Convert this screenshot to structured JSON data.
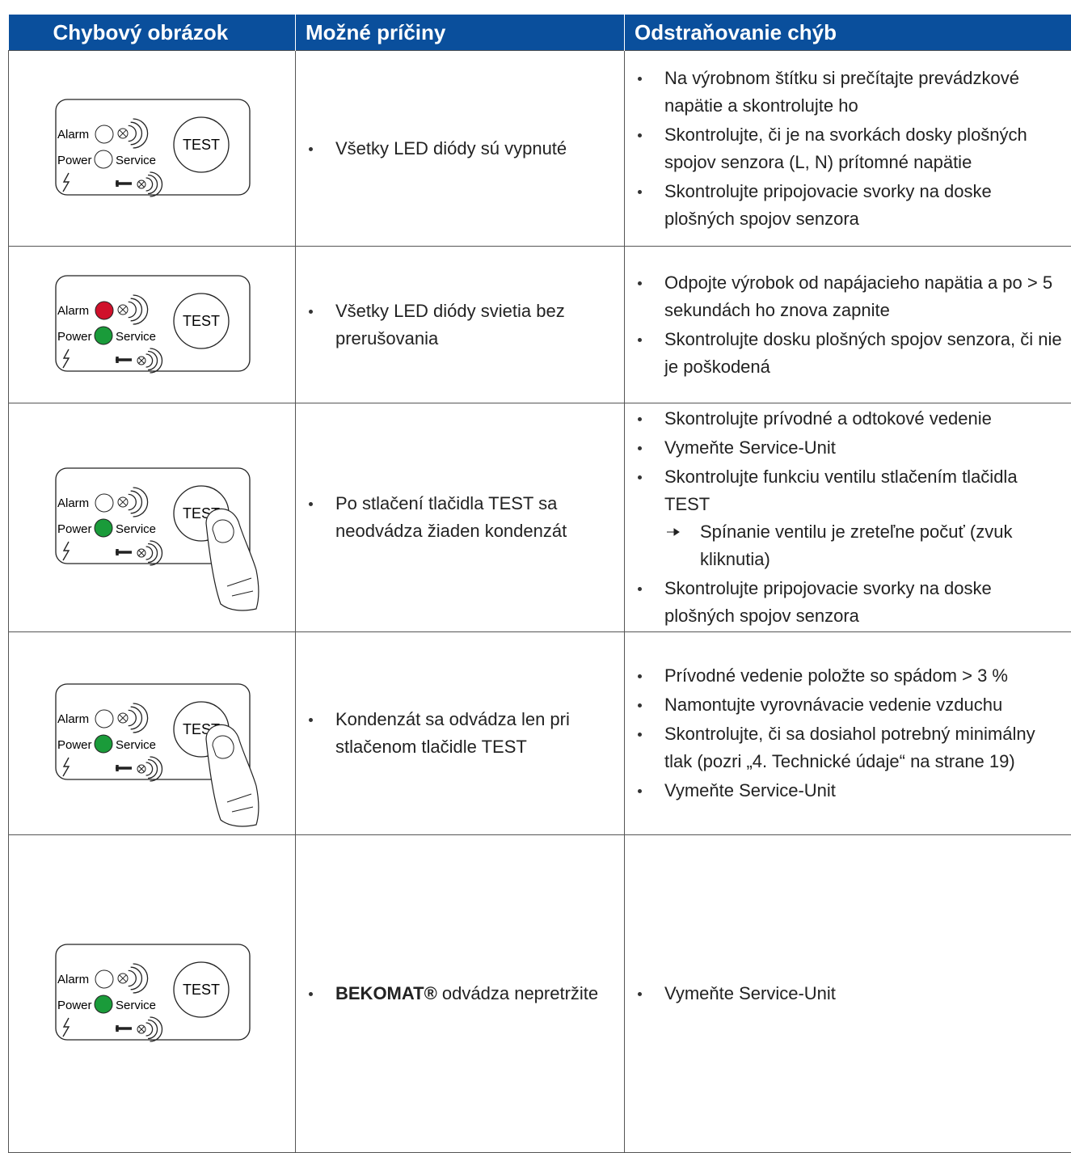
{
  "header": {
    "col1": "Chybový obrázok",
    "col2": "Možné príčiny",
    "col3": "Odstraňovanie chýb"
  },
  "rows": [
    {
      "panel": {
        "alarm": "Alarm",
        "power": "Power",
        "service": "Service",
        "test": "TEST",
        "alarm_led": "#ffffff",
        "power_led": "#ffffff",
        "pressed": false
      },
      "cause": "Všetky LED diódy sú vypnuté",
      "remedies": [
        {
          "text": "Na výrobnom štítku si prečítajte prevádzkové napätie a skontrolujte ho"
        },
        {
          "text": "Skontrolujte, či je na svorkách dosky plošných spojov senzora (L, N) prítomné napätie"
        },
        {
          "text": "Skontrolujte pripojovacie svorky na doske plošných spojov senzora"
        }
      ]
    },
    {
      "panel": {
        "alarm": "Alarm",
        "power": "Power",
        "service": "Service",
        "test": "TEST",
        "alarm_led": "#d0112b",
        "power_led": "#1a9b3a",
        "pressed": false
      },
      "cause": "Všetky LED diódy svietia bez prerušovania",
      "remedies": [
        {
          "text": "Odpojte výrobok od napájacieho napätia a po > 5 sekundách ho znova zapnite"
        },
        {
          "text": "Skontrolujte dosku plošných spojov senzora, či nie je poškodená"
        }
      ]
    },
    {
      "panel": {
        "alarm": "Alarm",
        "power": "Power",
        "service": "Service",
        "test": "TEST",
        "alarm_led": "#ffffff",
        "power_led": "#1a9b3a",
        "pressed": true
      },
      "cause": "Po stlačení tlačidla TEST sa neodvádza žiaden kondenzát",
      "remedies": [
        {
          "text": "Skontrolujte prívodné a odtokové vedenie"
        },
        {
          "text": "Vymeňte Service-Unit"
        },
        {
          "text": "Skontrolujte funkciu ventilu stlačením tlačidla TEST",
          "result": "Spínanie ventilu je zreteľne počuť (zvuk kliknutia)"
        },
        {
          "text": "Skontrolujte pripojovacie svorky na doske plošných spojov senzora"
        }
      ]
    },
    {
      "panel": {
        "alarm": "Alarm",
        "power": "Power",
        "service": "Service",
        "test": "TEST",
        "alarm_led": "#ffffff",
        "power_led": "#1a9b3a",
        "pressed": true
      },
      "cause": "Kondenzát sa odvádza len pri stlačenom tlačidle TEST",
      "remedies": [
        {
          "text": "Prívodné vedenie položte so spádom > 3 %"
        },
        {
          "text": "Namontujte vyrovnávacie vedenie vzduchu"
        },
        {
          "text": "Skontrolujte, či sa dosiahol potrebný minimálny tlak (pozri „4. Technické údaje“ na strane 19)"
        },
        {
          "text": "Vymeňte Service-Unit"
        }
      ]
    },
    {
      "panel": {
        "alarm": "Alarm",
        "power": "Power",
        "service": "Service",
        "test": "TEST",
        "alarm_led": "#ffffff",
        "power_led": "#1a9b3a",
        "pressed": false
      },
      "cause_bold": "BEKOMAT®",
      "cause": "odvádza nepretržite",
      "remedies": [
        {
          "text": "Vymeňte Service-Unit"
        }
      ]
    }
  ]
}
